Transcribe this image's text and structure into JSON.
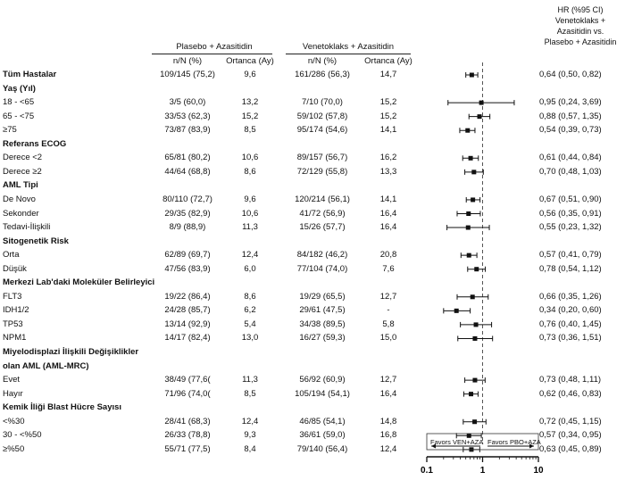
{
  "header": {
    "hr_column": [
      "HR (%95 CI)",
      "Venetoklaks +",
      "Azasitidin vs.",
      "Plasebo + Azasitidin"
    ],
    "group_placebo": "Plasebo + Azasitidin",
    "group_ven": "Venetoklaks + Azasitidin",
    "sub_n": "n/N (%)",
    "sub_median": "Ortanca (Ay)"
  },
  "rows": [
    {
      "label": "Tüm Hastalar",
      "type": "data",
      "bold": true,
      "pbo_n": "109/145 (75,2)",
      "pbo_med": "9,6",
      "ven_n": "161/286 (56,3)",
      "ven_med": "14,7",
      "hr_text": "0,64 (0,50, 0,82)"
    },
    {
      "label": "Yaş (Yıl)",
      "type": "header"
    },
    {
      "label": "18 - <65",
      "type": "data",
      "pbo_n": "3/5 (60,0)",
      "pbo_med": "13,2",
      "ven_n": "7/10 (70,0)",
      "ven_med": "15,2",
      "hr_text": "0,95 (0,24, 3,69)"
    },
    {
      "label": "65 - <75",
      "type": "data",
      "pbo_n": "33/53 (62,3)",
      "pbo_med": "15,2",
      "ven_n": "59/102 (57,8)",
      "ven_med": "15,2",
      "hr_text": "0,88 (0,57, 1,35)"
    },
    {
      "label": "≥75",
      "type": "data",
      "pbo_n": "73/87 (83,9)",
      "pbo_med": "8,5",
      "ven_n": "95/174 (54,6)",
      "ven_med": "14,1",
      "hr_text": "0,54 (0,39, 0,73)"
    },
    {
      "label": "Referans ECOG",
      "type": "header"
    },
    {
      "label": "Derece <2",
      "type": "data",
      "pbo_n": "65/81 (80,2)",
      "pbo_med": "10,6",
      "ven_n": "89/157 (56,7)",
      "ven_med": "16,2",
      "hr_text": "0,61 (0,44, 0,84)"
    },
    {
      "label": "Derece ≥2",
      "type": "data",
      "pbo_n": "44/64 (68,8)",
      "pbo_med": "8,6",
      "ven_n": "72/129 (55,8)",
      "ven_med": "13,3",
      "hr_text": "0,70 (0,48, 1,03)"
    },
    {
      "label": "AML Tipi",
      "type": "header"
    },
    {
      "label": "De Novo",
      "type": "data",
      "pbo_n": "80/110 (72,7)",
      "pbo_med": "9,6",
      "ven_n": "120/214 (56,1)",
      "ven_med": "14,1",
      "hr_text": "0,67 (0,51, 0,90)"
    },
    {
      "label": "Sekonder",
      "type": "data",
      "pbo_n": "29/35 (82,9)",
      "pbo_med": "10,6",
      "ven_n": "41/72 (56,9)",
      "ven_med": "16,4",
      "hr_text": "0,56 (0,35, 0,91)"
    },
    {
      "label": "Tedavi-İlişkili",
      "type": "data",
      "pbo_n": "8/9 (88,9)",
      "pbo_med": "11,3",
      "ven_n": "15/26 (57,7)",
      "ven_med": "16,4",
      "hr_text": "0,55 (0,23, 1,32)"
    },
    {
      "label": "Sitogenetik Risk",
      "type": "header"
    },
    {
      "label": "Orta",
      "type": "data",
      "pbo_n": "62/89 (69,7)",
      "pbo_med": "12,4",
      "ven_n": "84/182 (46,2)",
      "ven_med": "20,8",
      "hr_text": "0,57 (0,41, 0,79)"
    },
    {
      "label": "Düşük",
      "type": "data",
      "pbo_n": "47/56 (83,9)",
      "pbo_med": "6,0",
      "ven_n": "77/104 (74,0)",
      "ven_med": "7,6",
      "hr_text": "0,78 (0,54, 1,12)"
    },
    {
      "label": "Merkezi Lab'daki Moleküler Belirleyici",
      "type": "header"
    },
    {
      "label": "FLT3",
      "type": "data",
      "pbo_n": "19/22 (86,4)",
      "pbo_med": "8,6",
      "ven_n": "19/29 (65,5)",
      "ven_med": "12,7",
      "hr_text": "0,66 (0,35, 1,26)"
    },
    {
      "label": "IDH1/2",
      "type": "data",
      "pbo_n": "24/28 (85,7)",
      "pbo_med": "6,2",
      "ven_n": "29/61 (47,5)",
      "ven_med": "-",
      "hr_text": "0,34 (0,20, 0,60)"
    },
    {
      "label": "TP53",
      "type": "data",
      "pbo_n": "13/14 (92,9)",
      "pbo_med": "5,4",
      "ven_n": "34/38 (89,5)",
      "ven_med": "5,8",
      "hr_text": "0,76 (0,40, 1,45)"
    },
    {
      "label": "NPM1",
      "type": "data",
      "pbo_n": "14/17 (82,4)",
      "pbo_med": "13,0",
      "ven_n": "16/27 (59,3)",
      "ven_med": "15,0",
      "hr_text": "0,73 (0,36, 1,51)"
    },
    {
      "label": "Miyelodisplazi İlişkili Değişiklikler",
      "type": "header"
    },
    {
      "label": "olan AML (AML-MRC)",
      "type": "header"
    },
    {
      "label": "Evet",
      "type": "data",
      "pbo_n": "38/49 (77,6(",
      "pbo_med": "11,3",
      "ven_n": "56/92 (60,9)",
      "ven_med": "12,7",
      "hr_text": "0,73 (0,48, 1,11)"
    },
    {
      "label": "Hayır",
      "type": "data",
      "pbo_n": "71/96 (74,0(",
      "pbo_med": "8,5",
      "ven_n": "105/194 (54,1)",
      "ven_med": "16,4",
      "hr_text": "0,62 (0,46, 0,83)"
    },
    {
      "label": "Kemik İliği Blast Hücre Sayısı",
      "type": "header"
    },
    {
      "label": "<%30",
      "type": "data",
      "pbo_n": "28/41 (68,3)",
      "pbo_med": "12,4",
      "ven_n": "46/85 (54,1)",
      "ven_med": "14,8",
      "hr_text": "0,72 (0,45, 1,15)"
    },
    {
      "label": "30 - <%50",
      "type": "data",
      "pbo_n": "26/33 (78,8)",
      "pbo_med": "9,3",
      "ven_n": "36/61 (59,0)",
      "ven_med": "16,8",
      "hr_text": "0,57 (0,34, 0,95)"
    },
    {
      "label": "≥%50",
      "type": "data",
      "pbo_n": "55/71 (77,5)",
      "pbo_med": "8,4",
      "ven_n": "79/140 (56,4)",
      "ven_med": "12,4",
      "hr_text": "0,63 (0,45, 0,89)"
    }
  ],
  "chart_data": {
    "type": "forest",
    "scale": "log",
    "xlim": [
      0.1,
      10
    ],
    "reference_line": 1,
    "tick_labels": [
      "0.1",
      "1",
      "10"
    ],
    "favors_left": "Favors VEN+AZA",
    "favors_right": "Favors PBO+AZA",
    "points": [
      {
        "hr": 0.64,
        "lo": 0.5,
        "hi": 0.82
      },
      {
        "hr": 0.95,
        "lo": 0.24,
        "hi": 3.69
      },
      {
        "hr": 0.88,
        "lo": 0.57,
        "hi": 1.35
      },
      {
        "hr": 0.54,
        "lo": 0.39,
        "hi": 0.73
      },
      {
        "hr": 0.61,
        "lo": 0.44,
        "hi": 0.84
      },
      {
        "hr": 0.7,
        "lo": 0.48,
        "hi": 1.03
      },
      {
        "hr": 0.67,
        "lo": 0.51,
        "hi": 0.9
      },
      {
        "hr": 0.56,
        "lo": 0.35,
        "hi": 0.91
      },
      {
        "hr": 0.55,
        "lo": 0.23,
        "hi": 1.32
      },
      {
        "hr": 0.57,
        "lo": 0.41,
        "hi": 0.79
      },
      {
        "hr": 0.78,
        "lo": 0.54,
        "hi": 1.12
      },
      {
        "hr": 0.66,
        "lo": 0.35,
        "hi": 1.26
      },
      {
        "hr": 0.34,
        "lo": 0.2,
        "hi": 0.6
      },
      {
        "hr": 0.76,
        "lo": 0.4,
        "hi": 1.45
      },
      {
        "hr": 0.73,
        "lo": 0.36,
        "hi": 1.51
      },
      {
        "hr": 0.73,
        "lo": 0.48,
        "hi": 1.11
      },
      {
        "hr": 0.62,
        "lo": 0.46,
        "hi": 0.83
      },
      {
        "hr": 0.72,
        "lo": 0.45,
        "hi": 1.15
      },
      {
        "hr": 0.57,
        "lo": 0.34,
        "hi": 0.95
      },
      {
        "hr": 0.63,
        "lo": 0.45,
        "hi": 0.89
      }
    ]
  }
}
